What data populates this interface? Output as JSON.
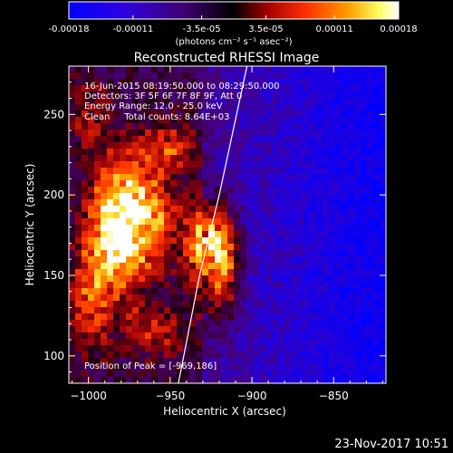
{
  "colorbar": {
    "ticks": [
      "-0.00018",
      "-0.00011",
      "-3.5e-05",
      "3.5e-05",
      "0.00011",
      "0.00018"
    ],
    "tick_values": [
      -0.00018,
      -0.00011,
      -3.5e-05,
      3.5e-05,
      0.00011,
      0.00018
    ],
    "range": [
      -0.00018,
      0.00018
    ],
    "units_label": "(photons cm⁻² s⁻¹ asec⁻²)",
    "colors": [
      "#0000ff",
      "#5a00c8",
      "#000000",
      "#a00000",
      "#ff3c00",
      "#ffb000",
      "#ffff80",
      "#ffffff"
    ]
  },
  "title": "Reconstructed RHESSI Image",
  "annotations": {
    "time_range": "16-Jun-2015 08:19:50.000 to 08:29:50.000",
    "detectors": "Detectors: 3F 5F 6F 7F 8F 9F, Att 0",
    "energy": "Energy Range: 12.0 - 25.0 keV",
    "clean": "Clean     Total counts: 8.64E+03",
    "peak": "Position of Peak = [-969,186]"
  },
  "footer_date": "23-Nov-2017 10:51",
  "chart_data": {
    "type": "heatmap",
    "title": "Reconstructed RHESSI Image",
    "xlabel": "Heliocentric X (arcsec)",
    "ylabel": "Heliocentric Y (arcsec)",
    "xlim": [
      -1012,
      -818
    ],
    "ylim": [
      83,
      280
    ],
    "xticks": [
      -1000,
      -950,
      -900,
      -850
    ],
    "xtick_labels": [
      "−1000",
      "−950",
      "−900",
      "−850"
    ],
    "yticks": [
      100,
      150,
      200,
      250
    ],
    "ytick_labels": [
      "100",
      "150",
      "200",
      "250"
    ],
    "peak_position": [
      -969,
      186
    ],
    "limb_curve": [
      [
        -945,
        83
      ],
      [
        -932,
        150
      ],
      [
        -920,
        200
      ],
      [
        -903,
        280
      ]
    ],
    "emission_sources": [
      {
        "x": -969,
        "y": 186,
        "sx": 14,
        "sy": 24,
        "amp": 1.0
      },
      {
        "x": -985,
        "y": 175,
        "sx": 10,
        "sy": 30,
        "amp": 0.75
      },
      {
        "x": -925,
        "y": 170,
        "sx": 10,
        "sy": 18,
        "amp": 0.95
      },
      {
        "x": -918,
        "y": 150,
        "sx": 8,
        "sy": 22,
        "amp": 0.6
      },
      {
        "x": -1000,
        "y": 140,
        "sx": 8,
        "sy": 25,
        "amp": 0.55
      },
      {
        "x": -950,
        "y": 230,
        "sx": 12,
        "sy": 10,
        "amp": 0.45
      },
      {
        "x": -960,
        "y": 115,
        "sx": 15,
        "sy": 12,
        "amp": 0.35
      },
      {
        "x": -1000,
        "y": 250,
        "sx": 8,
        "sy": 15,
        "amp": 0.3
      }
    ]
  }
}
